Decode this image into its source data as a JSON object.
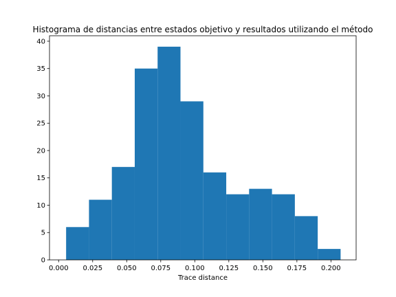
{
  "chart_data": {
    "type": "bar",
    "subtype": "histogram",
    "title": "Histograma de distancias entre estados objetivo y resultados utilizando el método",
    "xlabel": "Trace distance",
    "ylabel": "",
    "xlim": [
      -0.0067,
      0.2185
    ],
    "ylim": [
      0,
      41
    ],
    "x_ticks": [
      0.0,
      0.025,
      0.05,
      0.075,
      0.1,
      0.125,
      0.15,
      0.175,
      0.2
    ],
    "x_tick_labels": [
      "0.000",
      "0.025",
      "0.050",
      "0.075",
      "0.100",
      "0.125",
      "0.150",
      "0.175",
      "0.200"
    ],
    "y_ticks": [
      0,
      5,
      10,
      15,
      20,
      25,
      30,
      35,
      40
    ],
    "y_tick_labels": [
      "0",
      "5",
      "10",
      "15",
      "20",
      "25",
      "30",
      "35",
      "40"
    ],
    "bin_edges": [
      0.0055,
      0.0223,
      0.0391,
      0.0559,
      0.0727,
      0.0895,
      0.1063,
      0.1231,
      0.1399,
      0.1567,
      0.1735,
      0.1903,
      0.2071
    ],
    "counts": [
      6,
      11,
      17,
      35,
      39,
      29,
      16,
      12,
      13,
      12,
      8,
      2
    ],
    "color": "#1f77b4",
    "grid": false,
    "legend": "none"
  }
}
